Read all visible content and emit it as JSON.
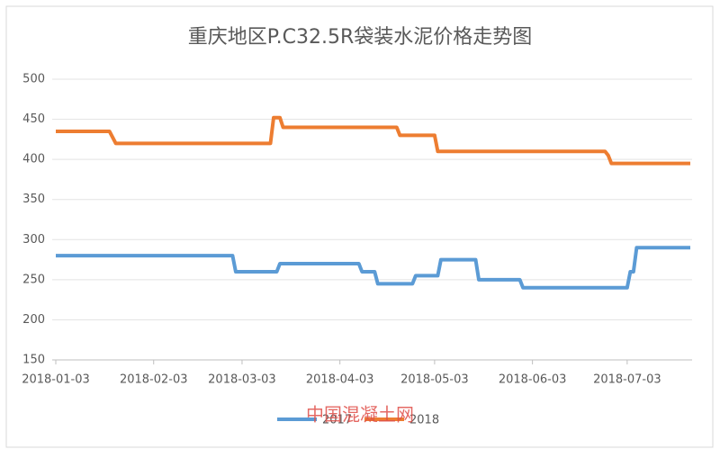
{
  "chart_data": {
    "type": "line",
    "title": "重庆地区P.C32.5R袋装水泥价格走势图",
    "series": [
      {
        "name": "2017",
        "color": "#5b9bd5",
        "x": [
          "2018-01-03",
          "2018-02-28",
          "2018-03-01",
          "2018-03-14",
          "2018-03-15",
          "2018-04-09",
          "2018-04-10",
          "2018-04-14",
          "2018-04-15",
          "2018-04-26",
          "2018-04-27",
          "2018-05-04",
          "2018-05-05",
          "2018-05-16",
          "2018-05-17",
          "2018-05-30",
          "2018-05-31",
          "2018-07-03",
          "2018-07-04",
          "2018-07-05",
          "2018-07-06",
          "2018-07-23"
        ],
        "values": [
          280,
          280,
          260,
          260,
          270,
          270,
          260,
          260,
          245,
          245,
          255,
          255,
          275,
          275,
          250,
          250,
          240,
          240,
          260,
          260,
          290,
          290
        ]
      },
      {
        "name": "2018",
        "color": "#ed7d31",
        "x": [
          "2018-01-03",
          "2018-01-20",
          "2018-01-22",
          "2018-03-12",
          "2018-03-13",
          "2018-03-15",
          "2018-03-16",
          "2018-04-21",
          "2018-04-22",
          "2018-05-03",
          "2018-05-04",
          "2018-06-26",
          "2018-06-27",
          "2018-06-28",
          "2018-07-23"
        ],
        "values": [
          435,
          435,
          420,
          420,
          452,
          452,
          440,
          440,
          430,
          430,
          410,
          410,
          405,
          395,
          395
        ]
      }
    ],
    "xlim": [
      "2018-01-03",
      "2018-07-23"
    ],
    "xticks": [
      "2018-01-03",
      "2018-02-03",
      "2018-03-03",
      "2018-04-03",
      "2018-05-03",
      "2018-06-03",
      "2018-07-03"
    ],
    "ylim": [
      150,
      500
    ],
    "yticks": [
      150,
      200,
      250,
      300,
      350,
      400,
      450,
      500
    ],
    "grid": true,
    "legend": "bottom",
    "watermark": "中国混凝土网"
  }
}
